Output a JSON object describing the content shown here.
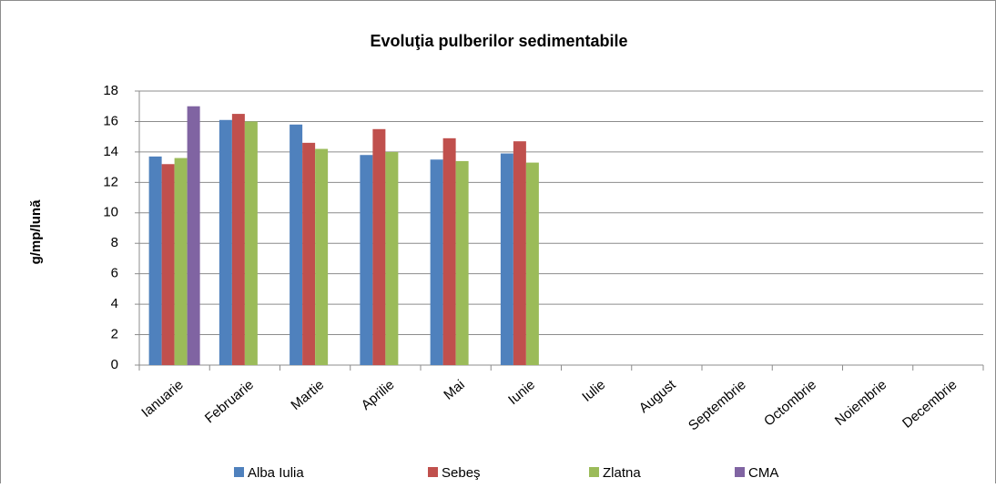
{
  "chart_data": {
    "type": "bar",
    "title": "Evoluţia pulberilor sedimentabile",
    "y_label": "g/mp/lună",
    "categories": [
      "Ianuarie",
      "Februarie",
      "Martie",
      "Aprilie",
      "Mai",
      "Iunie",
      "Iulie",
      "August",
      "Septembrie",
      "Octombrie",
      "Noiembrie",
      "Decembrie"
    ],
    "series": [
      {
        "name": "Alba Iulia",
        "color": "#4f81bd",
        "values": [
          13.7,
          16.1,
          15.8,
          13.8,
          13.5,
          13.9,
          null,
          null,
          null,
          null,
          null,
          null
        ]
      },
      {
        "name": "Sebeş",
        "color": "#c0504d",
        "values": [
          13.2,
          16.5,
          14.6,
          15.5,
          14.9,
          14.7,
          null,
          null,
          null,
          null,
          null,
          null
        ]
      },
      {
        "name": "Zlatna",
        "color": "#9bbb59",
        "values": [
          13.6,
          16.0,
          14.2,
          14.0,
          13.4,
          13.3,
          null,
          null,
          null,
          null,
          null,
          null
        ]
      },
      {
        "name": "CMA",
        "color": "#8064a2",
        "values": [
          17.0,
          null,
          null,
          null,
          null,
          null,
          null,
          null,
          null,
          null,
          null,
          null
        ]
      }
    ],
    "ylim": [
      0,
      18
    ],
    "yticks": [
      0,
      2,
      4,
      6,
      8,
      10,
      12,
      14,
      16,
      18
    ],
    "grid": true,
    "legend": "bottom"
  }
}
